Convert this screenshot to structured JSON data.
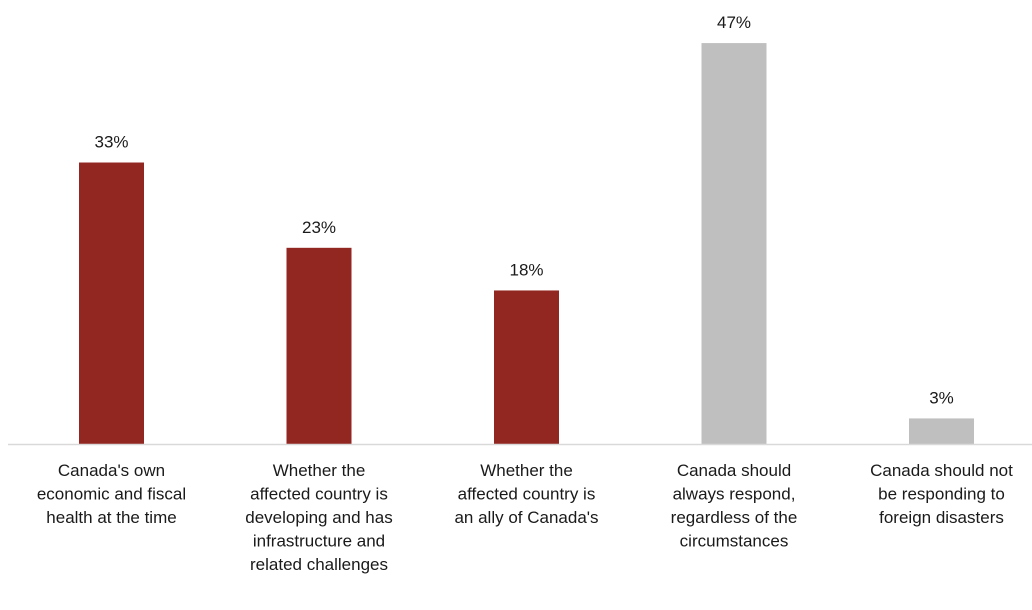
{
  "chart_data": {
    "type": "bar",
    "title": "",
    "xlabel": "",
    "ylabel": "",
    "ylim": [
      0,
      50
    ],
    "grid": false,
    "legend": "none",
    "categories": [
      [
        "Canada's own",
        "economic and fiscal",
        "health at the time"
      ],
      [
        "Whether the",
        "affected country is",
        "developing and has",
        "infrastructure and",
        "related challenges"
      ],
      [
        "Whether the",
        "affected country is",
        "an ally of Canada's"
      ],
      [
        "Canada should",
        "always respond,",
        "regardless of the",
        "circumstances"
      ],
      [
        "Canada should not",
        "be responding to",
        "foreign disasters"
      ]
    ],
    "values": [
      33,
      23,
      18,
      47,
      3
    ],
    "value_labels": [
      "33%",
      "23%",
      "18%",
      "47%",
      "3%"
    ],
    "colors": [
      "#922620",
      "#922620",
      "#922620",
      "#bfbfbf",
      "#bfbfbf"
    ],
    "axis_color": "#d9d9d9"
  }
}
